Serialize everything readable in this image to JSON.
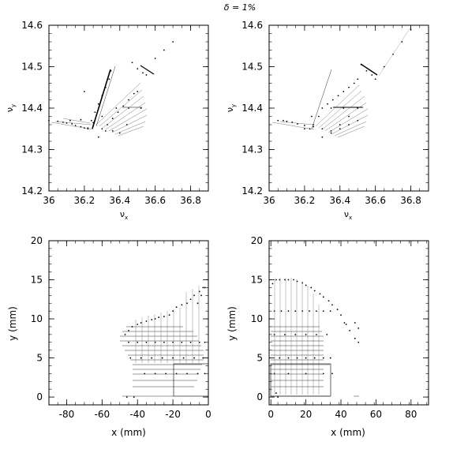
{
  "figure": {
    "title": "δ = 1%"
  },
  "chart_data": [
    {
      "type": "scatter",
      "xlabel": "ν",
      "xlabel_sub": "x",
      "ylabel": "ν",
      "ylabel_sub": "y",
      "xlim": [
        36.0,
        36.9
      ],
      "ylim": [
        14.2,
        14.6
      ],
      "xticks": [
        36,
        36.2,
        36.4,
        36.6,
        36.8
      ],
      "xtick_labels": [
        "36",
        "36.2",
        "36.4",
        "36.6",
        "36.8"
      ],
      "yticks": [
        14.2,
        14.3,
        14.4,
        14.5,
        14.6
      ],
      "ytick_labels": [
        "14.2",
        "14.3",
        "14.4",
        "14.5",
        "14.6"
      ],
      "grid": false,
      "series": [
        {
          "color": "#000000",
          "x": [
            36.0,
            36.05,
            36.08,
            36.1,
            36.13,
            36.15,
            36.18,
            36.2,
            36.22,
            36.22,
            36.24,
            36.26,
            36.28,
            36.3,
            36.32,
            36.34,
            36.35,
            36.3,
            36.33,
            36.36,
            36.39,
            36.42,
            36.45,
            36.48,
            36.5,
            36.38,
            36.45,
            36.52,
            36.47,
            36.5,
            36.53,
            36.55,
            36.6,
            36.65,
            36.7,
            36.12,
            36.18,
            36.25,
            36.32,
            36.4,
            36.28,
            36.36,
            36.44,
            36.3,
            36.2
          ],
          "y": [
            14.37,
            14.368,
            14.366,
            14.364,
            14.362,
            14.358,
            14.355,
            14.352,
            14.35,
            14.352,
            14.37,
            14.39,
            14.41,
            14.43,
            14.45,
            14.47,
            14.49,
            14.35,
            14.36,
            14.375,
            14.39,
            14.405,
            14.42,
            14.435,
            14.44,
            14.4,
            14.4,
            14.4,
            14.51,
            14.495,
            14.485,
            14.48,
            14.52,
            14.54,
            14.56,
            14.37,
            14.372,
            14.365,
            14.345,
            14.34,
            14.33,
            14.345,
            14.36,
            14.38,
            14.44
          ]
        }
      ]
    },
    {
      "type": "scatter",
      "xlabel": "ν",
      "xlabel_sub": "x",
      "ylabel": "ν",
      "ylabel_sub": "y",
      "xlim": [
        36.0,
        36.9
      ],
      "ylim": [
        14.2,
        14.6
      ],
      "xticks": [
        36,
        36.2,
        36.4,
        36.6,
        36.8
      ],
      "xtick_labels": [
        "36",
        "36.2",
        "36.4",
        "36.6",
        "36.8"
      ],
      "yticks": [
        14.2,
        14.3,
        14.4,
        14.5,
        14.6
      ],
      "ytick_labels": [
        "14.2",
        "14.3",
        "14.4",
        "14.5",
        "14.6"
      ],
      "grid": false,
      "series": [
        {
          "color": "#000000",
          "x": [
            36.05,
            36.08,
            36.1,
            36.13,
            36.16,
            36.2,
            36.23,
            36.25,
            36.28,
            36.3,
            36.33,
            36.36,
            36.39,
            36.42,
            36.45,
            36.48,
            36.5,
            36.35,
            36.4,
            36.45,
            36.5,
            36.52,
            36.55,
            36.58,
            36.6,
            36.65,
            36.7,
            36.75,
            36.8,
            36.35,
            36.42,
            36.5,
            36.2,
            36.25,
            36.3,
            36.24,
            36.4,
            36.45,
            36.5,
            36.3,
            36.35
          ],
          "y": [
            14.37,
            14.37,
            14.368,
            14.366,
            14.362,
            14.358,
            14.35,
            14.36,
            14.38,
            14.4,
            14.41,
            14.42,
            14.43,
            14.44,
            14.45,
            14.46,
            14.47,
            14.345,
            14.36,
            14.38,
            14.4,
            14.505,
            14.49,
            14.48,
            14.47,
            14.5,
            14.53,
            14.56,
            14.59,
            14.4,
            14.4,
            14.4,
            14.35,
            14.355,
            14.35,
            14.38,
            14.35,
            14.36,
            14.37,
            14.33,
            14.34
          ]
        }
      ]
    },
    {
      "type": "scatter",
      "xlabel": "x (mm)",
      "ylabel": "y (mm)",
      "xlim": [
        -90,
        0
      ],
      "ylim": [
        -1,
        20
      ],
      "xticks": [
        -80,
        -60,
        -40,
        -20,
        0
      ],
      "xtick_labels": [
        "-80",
        "-60",
        "-40",
        "-20",
        "0"
      ],
      "yticks": [
        0,
        5,
        10,
        15,
        20
      ],
      "ytick_labels": [
        "0",
        "5",
        "10",
        "15",
        "20"
      ],
      "grid": false,
      "series": [
        {
          "color": "#000000",
          "x": [
            -47,
            -45,
            -43,
            -40,
            -38,
            -35,
            -32,
            -30,
            -28,
            -25,
            -22,
            -20,
            -18,
            -15,
            -12,
            -10,
            -8,
            -5,
            -3,
            -2,
            -45,
            -40,
            -35,
            -30,
            -25,
            -20,
            -15,
            -10,
            -5,
            -2,
            -44,
            -38,
            -32,
            -26,
            -20,
            -14,
            -8,
            -3,
            -36,
            -30,
            -24,
            -18,
            -12,
            -6,
            -2,
            -46,
            -42,
            -6,
            -4,
            -2
          ],
          "y": [
            8,
            8.5,
            9,
            9.3,
            9.5,
            9.7,
            9.9,
            10,
            10.2,
            10.3,
            10.5,
            11,
            11.5,
            11.8,
            12,
            12.5,
            13,
            13.5,
            14,
            14,
            7,
            7,
            7,
            7,
            7,
            7,
            7,
            7,
            7,
            7,
            5,
            5,
            5,
            5,
            5,
            5,
            5,
            5,
            3,
            3,
            3,
            3,
            3,
            3,
            3,
            0,
            0,
            12,
            13,
            14
          ]
        }
      ]
    },
    {
      "type": "scatter",
      "xlabel": "x (mm)",
      "ylabel": "y (mm)",
      "xlim": [
        -1,
        90
      ],
      "ylim": [
        -1,
        20
      ],
      "xticks": [
        0,
        20,
        40,
        60,
        80
      ],
      "xtick_labels": [
        "0",
        "20",
        "40",
        "60",
        "80"
      ],
      "yticks": [
        0,
        5,
        10,
        15,
        20
      ],
      "ytick_labels": [
        "0",
        "5",
        "10",
        "15",
        "20"
      ],
      "grid": false,
      "series": [
        {
          "color": "#000000",
          "x": [
            1,
            3,
            5,
            8,
            10,
            13,
            15,
            18,
            20,
            23,
            25,
            28,
            30,
            33,
            35,
            38,
            40,
            42,
            45,
            48,
            50,
            2,
            6,
            10,
            14,
            18,
            22,
            26,
            30,
            34,
            2,
            8,
            14,
            20,
            26,
            32,
            5,
            10,
            15,
            20,
            25,
            30,
            34,
            2,
            10,
            20,
            30,
            35,
            43,
            50,
            48,
            3,
            4
          ],
          "y": [
            14.5,
            15,
            15,
            15,
            15,
            15,
            14.8,
            14.6,
            14.3,
            14,
            13.6,
            13.2,
            12.8,
            12.3,
            11.8,
            11.2,
            10.5,
            9.5,
            8.5,
            7.5,
            7,
            11,
            11,
            11,
            11,
            11,
            11,
            11,
            11,
            11,
            8,
            8,
            8,
            8,
            8,
            8,
            5,
            5,
            5,
            5,
            5,
            5,
            5,
            3,
            3,
            3,
            3,
            3,
            9.3,
            8.8,
            9.5,
            0.5,
            0
          ]
        }
      ]
    }
  ]
}
